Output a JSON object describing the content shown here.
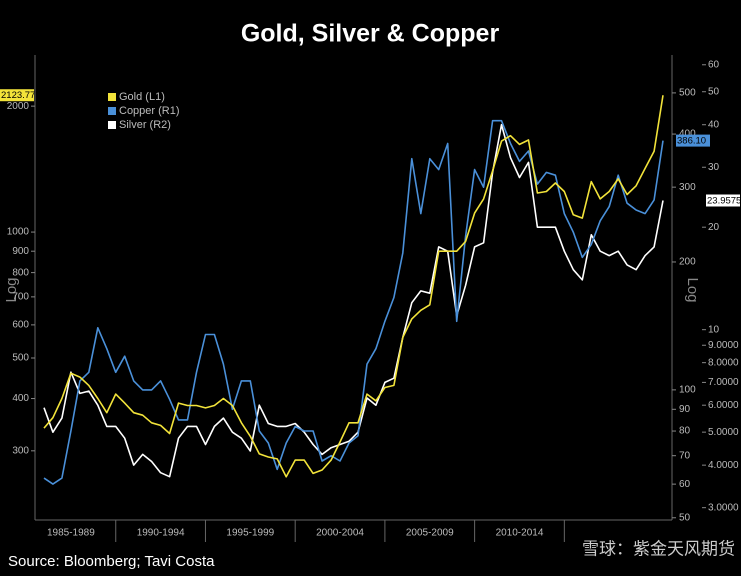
{
  "chart_data": {
    "type": "line",
    "title": "Gold, Silver & Copper",
    "source": "Source: Bloomberg; Tavi Costa",
    "watermark": "雪球：紫金天风期货",
    "y_label": "Log",
    "y2_label": "Log",
    "log": true,
    "xlim": [
      1985.5,
      2021
    ],
    "xticks": [
      1990,
      1995,
      2000,
      2005,
      2010,
      2015
    ],
    "period_labels": [
      "1985-1989",
      "1990-1994",
      "1995-1999",
      "2000-2004",
      "2005-2009",
      "2010-2014"
    ],
    "ylim": [
      205,
      2650
    ],
    "yticks": [
      300,
      400,
      500,
      600,
      700,
      800,
      900,
      1000,
      2000
    ],
    "y2lim": [
      49.4,
      614
    ],
    "y2ticks": [
      50,
      60,
      70,
      80,
      90,
      100,
      200,
      300,
      400,
      500
    ],
    "y3lim": [
      2.76,
      64.1
    ],
    "y3ticks": [
      {
        "value": 3,
        "label": "3.0000"
      },
      {
        "value": 4,
        "label": "4.0000"
      },
      {
        "value": 5,
        "label": "5.0000"
      },
      {
        "value": 6,
        "label": "6.0000"
      },
      {
        "value": 7,
        "label": "7.0000"
      },
      {
        "value": 8,
        "label": "8.0000"
      },
      {
        "value": 9,
        "label": "9.0000"
      },
      10,
      20,
      30,
      40,
      50,
      60
    ],
    "x": [
      1986,
      1986.5,
      1987,
      1987.5,
      1988,
      1988.5,
      1989,
      1989.5,
      1990,
      1990.5,
      1991,
      1991.5,
      1992,
      1992.5,
      1993,
      1993.5,
      1994,
      1994.5,
      1995,
      1995.5,
      1996,
      1996.5,
      1997,
      1997.5,
      1998,
      1998.5,
      1999,
      1999.5,
      2000,
      2000.5,
      2001,
      2001.5,
      2002,
      2002.5,
      2003,
      2003.5,
      2004,
      2004.5,
      2005,
      2005.5,
      2006,
      2006.5,
      2007,
      2007.5,
      2008,
      2008.5,
      2009,
      2009.5,
      2010,
      2010.5,
      2011,
      2011.5,
      2012,
      2012.5,
      2013,
      2013.5,
      2014,
      2014.5,
      2015,
      2015.5,
      2016,
      2016.5,
      2017,
      2017.5,
      2018,
      2018.5,
      2019,
      2019.5,
      2020,
      2020.5
    ],
    "series": [
      {
        "name": "Gold (L1)",
        "color": "#f2e33a",
        "axis": "y",
        "end_label": "2123.77",
        "values": [
          340,
          360,
          400,
          460,
          450,
          430,
          400,
          370,
          410,
          390,
          370,
          365,
          350,
          345,
          330,
          390,
          385,
          385,
          380,
          385,
          400,
          385,
          350,
          325,
          295,
          290,
          287,
          260,
          285,
          285,
          265,
          270,
          285,
          315,
          350,
          350,
          410,
          395,
          425,
          430,
          560,
          620,
          650,
          670,
          900,
          900,
          900,
          950,
          1110,
          1200,
          1400,
          1650,
          1700,
          1620,
          1660,
          1240,
          1250,
          1310,
          1250,
          1100,
          1080,
          1320,
          1200,
          1250,
          1340,
          1230,
          1290,
          1420,
          1560,
          2123.77
        ]
      },
      {
        "name": "Copper (R1)",
        "color": "#4a90d9",
        "axis": "y2",
        "end_label": "386.10",
        "values": [
          62,
          60,
          62,
          80,
          105,
          110,
          140,
          125,
          110,
          120,
          105,
          100,
          100,
          105,
          95,
          85,
          85,
          110,
          135,
          135,
          115,
          90,
          105,
          105,
          80,
          75,
          65,
          75,
          82,
          80,
          80,
          68,
          70,
          68,
          75,
          78,
          115,
          125,
          145,
          165,
          210,
          350,
          260,
          350,
          330,
          380,
          145,
          230,
          330,
          300,
          430,
          430,
          380,
          345,
          365,
          305,
          325,
          320,
          260,
          235,
          205,
          220,
          250,
          270,
          320,
          275,
          265,
          260,
          280,
          386.1
        ]
      },
      {
        "name": "Silver (R2)",
        "color": "#ffffff",
        "axis": "y3",
        "end_label": "23.9575",
        "values": [
          5.9,
          5.0,
          5.5,
          7.5,
          6.5,
          6.6,
          6.0,
          5.2,
          5.2,
          4.8,
          4.0,
          4.3,
          4.1,
          3.8,
          3.7,
          4.8,
          5.2,
          5.2,
          4.6,
          5.2,
          5.5,
          5.0,
          4.8,
          4.4,
          6.0,
          5.3,
          5.2,
          5.2,
          5.3,
          5.0,
          4.6,
          4.3,
          4.5,
          4.6,
          4.7,
          5.0,
          6.3,
          6.0,
          7.0,
          7.2,
          9.5,
          12.0,
          13.0,
          12.8,
          17.5,
          17.0,
          11.0,
          13.5,
          17.5,
          18.0,
          29,
          40,
          32,
          28,
          31,
          20,
          20,
          20,
          17,
          15,
          14,
          19,
          17,
          16.5,
          17,
          15.5,
          15,
          16.5,
          17.5,
          23.9575
        ]
      }
    ]
  }
}
